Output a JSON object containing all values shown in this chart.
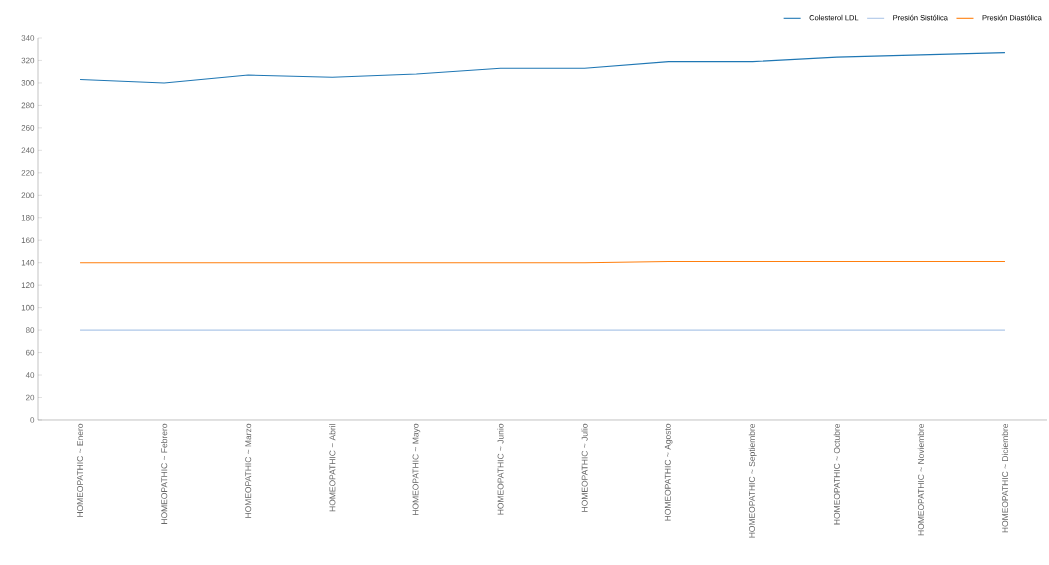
{
  "chart_data": {
    "type": "line",
    "categories": [
      "HOMEOPATHIC ~ Enero",
      "HOMEOPATHIC ~ Febrero",
      "HOMEOPATHIC ~ Marzo",
      "HOMEOPATHIC ~ Abril",
      "HOMEOPATHIC ~ Mayo",
      "HOMEOPATHIC ~ Junio",
      "HOMEOPATHIC ~ Julio",
      "HOMEOPATHIC ~ Agosto",
      "HOMEOPATHIC ~ Septiembre",
      "HOMEOPATHIC ~ Octubre",
      "HOMEOPATHIC ~ Noviembre",
      "HOMEOPATHIC ~ Diciembre"
    ],
    "series": [
      {
        "name": "Colesterol LDL",
        "color": "#1f77b4",
        "values": [
          303,
          300,
          307,
          305,
          308,
          313,
          313,
          319,
          319,
          323,
          325,
          327
        ]
      },
      {
        "name": "Presión Sistólica",
        "color": "#aec7e8",
        "values": [
          80,
          80,
          80,
          80,
          80,
          80,
          80,
          80,
          80,
          80,
          80,
          80
        ]
      },
      {
        "name": "Presión Diastólica",
        "color": "#ff7f0e",
        "values": [
          140,
          140,
          140,
          140,
          140,
          140,
          140,
          141,
          141,
          141,
          141,
          141
        ]
      }
    ],
    "ylim": [
      0,
      340
    ],
    "yticks": [
      0,
      20,
      40,
      60,
      80,
      100,
      120,
      140,
      160,
      180,
      200,
      220,
      240,
      260,
      280,
      300,
      320,
      340
    ],
    "grid": false,
    "legend": "top right",
    "marker": "none",
    "line_style": "solid"
  }
}
